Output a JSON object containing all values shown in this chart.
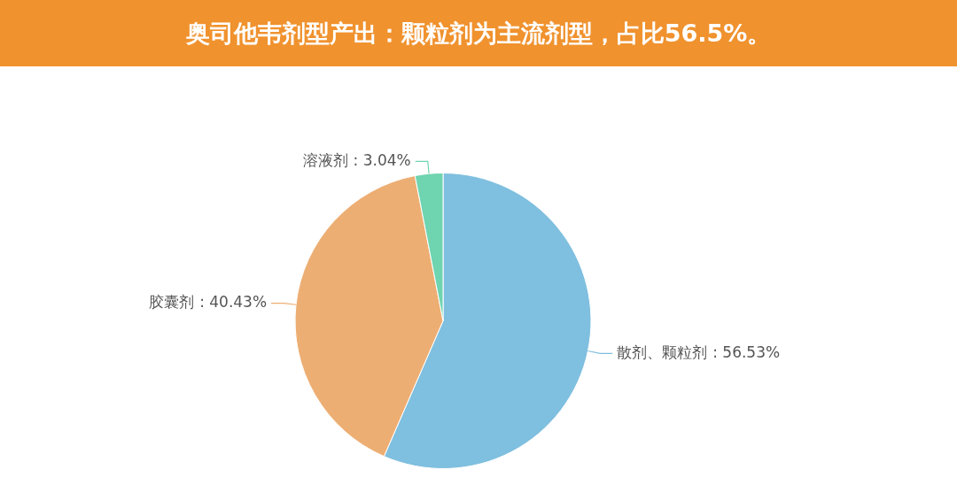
{
  "chart_data": {
    "type": "pie",
    "title": "奥司他韦剂型产出：颗粒剂为主流剂型，占比56.5%。",
    "categories": [
      "散剂、颗粒剂",
      "胶囊剂",
      "溶液剂"
    ],
    "values": [
      56.53,
      40.43,
      3.04
    ],
    "colors": [
      "#7fbfdf",
      "#edae73",
      "#6fd4b0"
    ],
    "value_labels": [
      ": 56.53%",
      ": 40.43%",
      ": 3.04%"
    ],
    "legend": false
  }
}
